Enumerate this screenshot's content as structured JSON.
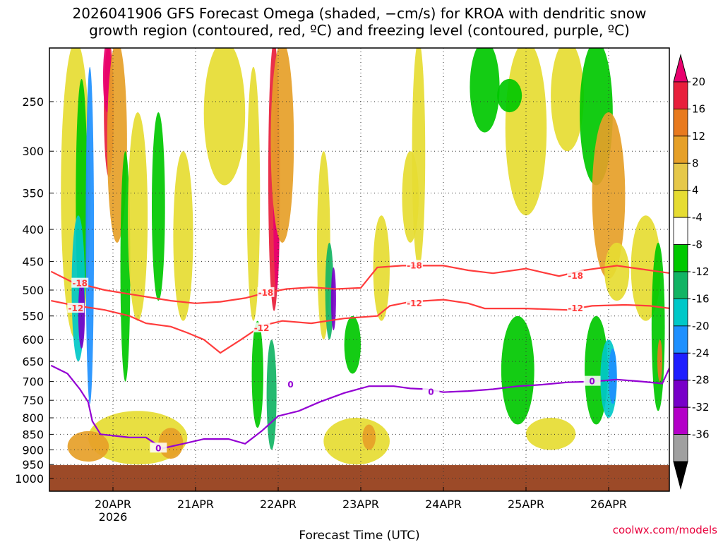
{
  "chart_data": {
    "type": "heatmap",
    "title_line1": "2026041906 GFS Forecast Omega (shaded, −cm/s) for KROA with dendritic snow",
    "title_line2": "growth region (contoured, red, ºC) and freezing level (contoured, purple, ºC)",
    "xlabel": "Forecast Time (UTC)",
    "credit": "coolwx.com/models",
    "x_tick_labels": [
      "20APR",
      "21APR",
      "22APR",
      "23APR",
      "24APR",
      "25APR",
      "26APR"
    ],
    "x_tick_days": [
      20,
      21,
      22,
      23,
      24,
      25,
      26
    ],
    "x_year_label": "2026",
    "xlim_days": [
      19.25,
      26.75
    ],
    "y_ticks": [
      250,
      300,
      350,
      400,
      450,
      500,
      550,
      600,
      650,
      700,
      750,
      800,
      850,
      900,
      950,
      1000
    ],
    "ylim": [
      200,
      1050
    ],
    "ground_pressure": 952,
    "colorbar": {
      "labels": [
        20,
        16,
        12,
        8,
        4,
        -4,
        -8,
        -12,
        -16,
        -20,
        -24,
        -28,
        -32,
        -36
      ],
      "colors": [
        "#e8006e",
        "#e8203c",
        "#e87a1e",
        "#e6a028",
        "#e6c84a",
        "#e6dc32",
        "#ffffff",
        "#00c800",
        "#12b464",
        "#00c8c8",
        "#1e90ff",
        "#1e1eff",
        "#7800c8",
        "#b400c8",
        "#a0a0a0",
        "#000000"
      ]
    },
    "contours": [
      {
        "level": -18,
        "color": "#ff3c3c",
        "points": [
          [
            19.25,
            467
          ],
          [
            19.5,
            485
          ],
          [
            19.9,
            500
          ],
          [
            20.3,
            510
          ],
          [
            20.7,
            520
          ],
          [
            21.0,
            525
          ],
          [
            21.3,
            522
          ],
          [
            21.6,
            515
          ],
          [
            21.85,
            505
          ],
          [
            22.1,
            498
          ],
          [
            22.4,
            495
          ],
          [
            22.7,
            498
          ],
          [
            23.0,
            496
          ],
          [
            23.2,
            460
          ],
          [
            23.5,
            457
          ],
          [
            24.0,
            457
          ],
          [
            24.3,
            465
          ],
          [
            24.6,
            470
          ],
          [
            25.0,
            462
          ],
          [
            25.4,
            475
          ],
          [
            25.7,
            465
          ],
          [
            26.1,
            457
          ],
          [
            26.4,
            463
          ],
          [
            26.75,
            470
          ]
        ],
        "label_at": [
          [
            19.6,
            488
          ],
          [
            21.85,
            505
          ],
          [
            23.65,
            457
          ],
          [
            25.6,
            475
          ]
        ]
      },
      {
        "level": -12,
        "color": "#ff3c3c",
        "points": [
          [
            19.25,
            520
          ],
          [
            19.5,
            528
          ],
          [
            19.9,
            538
          ],
          [
            20.2,
            550
          ],
          [
            20.4,
            565
          ],
          [
            20.7,
            572
          ],
          [
            20.9,
            585
          ],
          [
            21.1,
            600
          ],
          [
            21.3,
            630
          ],
          [
            21.55,
            600
          ],
          [
            21.8,
            570
          ],
          [
            22.05,
            560
          ],
          [
            22.4,
            565
          ],
          [
            22.8,
            555
          ],
          [
            23.2,
            550
          ],
          [
            23.35,
            530
          ],
          [
            23.6,
            522
          ],
          [
            24.0,
            518
          ],
          [
            24.3,
            525
          ],
          [
            24.5,
            535
          ],
          [
            25.0,
            535
          ],
          [
            25.5,
            538
          ],
          [
            25.8,
            530
          ],
          [
            26.2,
            528
          ],
          [
            26.5,
            530
          ],
          [
            26.75,
            535
          ]
        ],
        "label_at": [
          [
            19.55,
            535
          ],
          [
            21.8,
            575
          ],
          [
            23.65,
            525
          ],
          [
            25.6,
            535
          ]
        ]
      },
      {
        "level": 0,
        "color": "#9400d3",
        "points": [
          [
            19.25,
            660
          ],
          [
            19.45,
            680
          ],
          [
            19.6,
            720
          ],
          [
            19.7,
            755
          ],
          [
            19.75,
            810
          ],
          [
            19.85,
            850
          ],
          [
            20.2,
            860
          ],
          [
            20.4,
            860
          ],
          [
            20.6,
            895
          ],
          [
            20.85,
            880
          ],
          [
            21.1,
            865
          ],
          [
            21.4,
            865
          ],
          [
            21.6,
            880
          ],
          [
            21.8,
            840
          ],
          [
            22.0,
            795
          ],
          [
            22.25,
            780
          ],
          [
            22.5,
            755
          ],
          [
            22.8,
            730
          ],
          [
            23.1,
            712
          ],
          [
            23.4,
            712
          ],
          [
            23.6,
            718
          ],
          [
            23.8,
            720
          ],
          [
            24.0,
            728
          ],
          [
            24.3,
            725
          ],
          [
            24.6,
            720
          ],
          [
            24.9,
            712
          ],
          [
            25.2,
            708
          ],
          [
            25.5,
            702
          ],
          [
            25.8,
            700
          ],
          [
            26.1,
            695
          ],
          [
            26.4,
            700
          ],
          [
            26.65,
            705
          ],
          [
            26.75,
            660
          ]
        ],
        "label_at": [
          [
            20.55,
            895
          ],
          [
            22.15,
            708
          ],
          [
            23.85,
            728
          ],
          [
            25.8,
            700
          ]
        ]
      }
    ]
  }
}
